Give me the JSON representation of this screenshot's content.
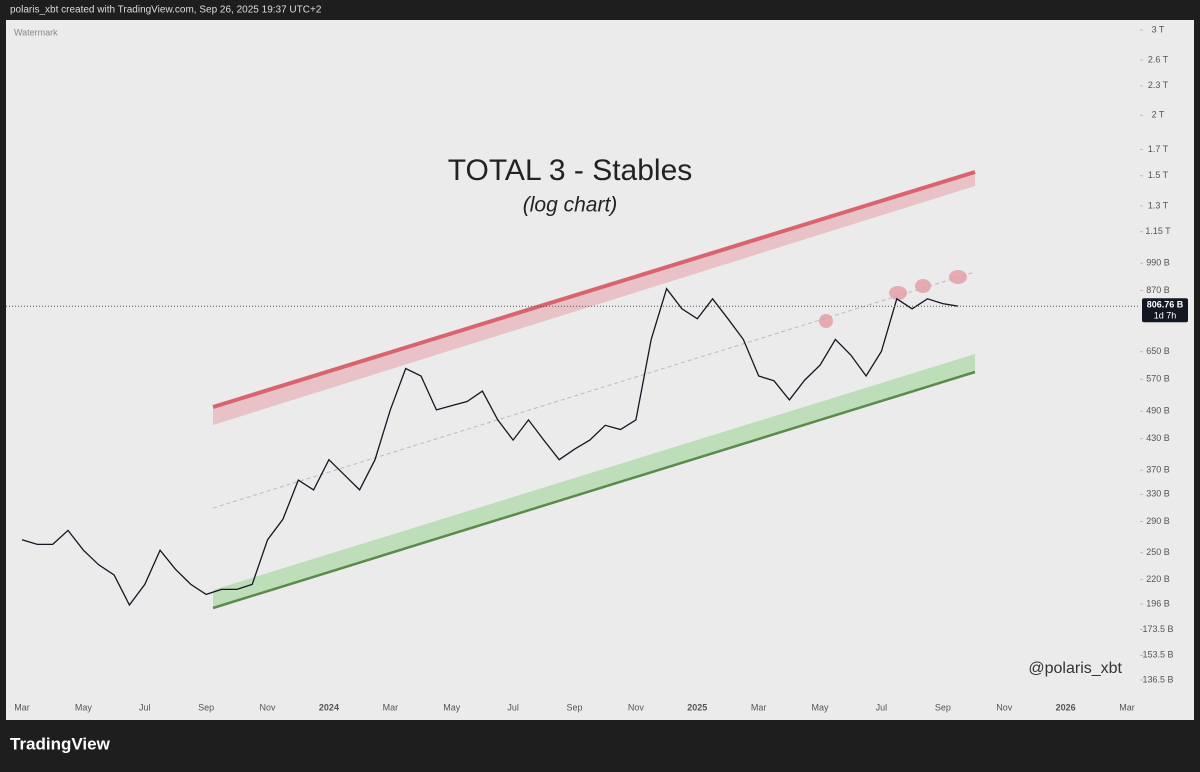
{
  "header": "polaris_xbt created with TradingView.com, Sep 26, 2025 19:37 UTC+2",
  "footer": "TradingView",
  "chart_data": {
    "type": "line",
    "title": "TOTAL 3 - Stables",
    "subtitle": "(log chart)",
    "watermark": "Watermark",
    "annotation": "@polaris_xbt",
    "log_scale": true,
    "color": "#131722",
    "categories": [
      "Mar",
      null,
      null,
      null,
      "May",
      null,
      null,
      null,
      "Jul",
      null,
      null,
      null,
      "Sep",
      null,
      null,
      null,
      "Nov",
      null,
      null,
      null,
      "2024",
      null,
      null,
      null,
      "Mar",
      null,
      null,
      null,
      "May",
      null,
      null,
      null,
      "Jul",
      null,
      null,
      null,
      "Sep",
      null,
      null,
      null,
      "Nov",
      null,
      null,
      null,
      "2025",
      null,
      null,
      null,
      "Mar",
      null,
      null,
      null,
      "May",
      null,
      null,
      null,
      "Jul",
      null,
      null,
      null,
      "Sep",
      null,
      null,
      null,
      "Nov",
      null,
      null,
      null,
      "2026",
      null,
      null,
      null,
      "Mar"
    ],
    "values": [
      266,
      260,
      260,
      278,
      253,
      236,
      225,
      195,
      215,
      253,
      231,
      215,
      205,
      210,
      210,
      215,
      266,
      293,
      353,
      337,
      389,
      362,
      337,
      389,
      493,
      600,
      579,
      493,
      503,
      513,
      539,
      470,
      427,
      470,
      427,
      389,
      409,
      427,
      458,
      449,
      470,
      689,
      877,
      797,
      760,
      836,
      760,
      689,
      579,
      566,
      517,
      568,
      610,
      689,
      640,
      579,
      651,
      836,
      797,
      836,
      817,
      807,
      null,
      null,
      null,
      null,
      null,
      null,
      null,
      null,
      null,
      null,
      null
    ],
    "price_line": {
      "value": 806.76,
      "label": "806.76 B"
    },
    "countdown": "1d 7h",
    "ylim": [
      126.5,
      3116
    ],
    "yticks": [
      {
        "value": 3000,
        "label": "3 T"
      },
      {
        "value": 2600,
        "label": "2.6 T"
      },
      {
        "value": 2300,
        "label": "2.3 T"
      },
      {
        "value": 2000,
        "label": "2 T"
      },
      {
        "value": 1700,
        "label": "1.7 T"
      },
      {
        "value": 1500,
        "label": "1.5 T"
      },
      {
        "value": 1300,
        "label": "1.3 T"
      },
      {
        "value": 1150,
        "label": "1.15 T"
      },
      {
        "value": 990,
        "label": "990 B"
      },
      {
        "value": 870,
        "label": "870 B"
      },
      {
        "value": 650,
        "label": "650 B"
      },
      {
        "value": 570,
        "label": "570 B"
      },
      {
        "value": 490,
        "label": "490 B"
      },
      {
        "value": 430,
        "label": "430 B"
      },
      {
        "value": 370,
        "label": "370 B"
      },
      {
        "value": 330,
        "label": "330 B"
      },
      {
        "value": 290,
        "label": "290 B"
      },
      {
        "value": 250,
        "label": "250 B"
      },
      {
        "value": 220,
        "label": "220 B"
      },
      {
        "value": 196,
        "label": "196 B"
      },
      {
        "value": 173.5,
        "label": "173.5 B"
      },
      {
        "value": 153.5,
        "label": "153.5 B"
      },
      {
        "value": 136.5,
        "label": "136.5 B"
      }
    ]
  }
}
